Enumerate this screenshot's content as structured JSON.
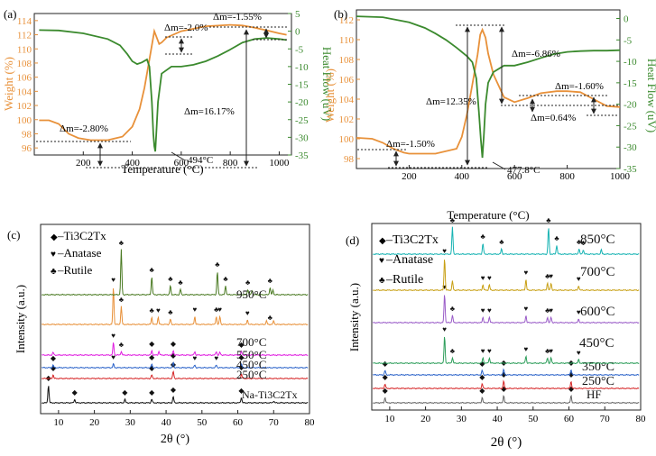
{
  "colors": {
    "weight": "#e8913a",
    "heat": "#3b8a2e",
    "axis": "#222222"
  },
  "chart_data": [
    {
      "type": "line",
      "panel": "(a)",
      "xlabel": "Temperature (°C)",
      "ylabel": "Weight (%)",
      "y2label": "Heat Flow (uV)",
      "xlim": [
        0,
        1050
      ],
      "ylim": [
        95,
        115
      ],
      "y2lim": [
        -35,
        5
      ],
      "xticks": [
        200,
        400,
        600,
        800,
        1000
      ],
      "yticks": [
        96,
        98,
        100,
        102,
        104,
        106,
        108,
        110,
        112,
        114
      ],
      "y2ticks": [
        5,
        0,
        -5,
        -10,
        -15,
        -20,
        -25,
        -30,
        -35
      ],
      "series": [
        {
          "name": "Weight",
          "axis": "left",
          "color": "#e8913a",
          "x": [
            20,
            60,
            100,
            140,
            180,
            230,
            300,
            360,
            400,
            430,
            450,
            470,
            480,
            490,
            500,
            510,
            520,
            540,
            600,
            700,
            800,
            850,
            900,
            950,
            1000,
            1030
          ],
          "y": [
            99.9,
            99.9,
            99.4,
            98.0,
            97.4,
            97.1,
            97.1,
            97.6,
            99.0,
            101.5,
            104.5,
            108.5,
            110.5,
            112.5,
            111.6,
            110.7,
            110.9,
            111.6,
            112.5,
            113.2,
            113.4,
            113.3,
            113.0,
            112.6,
            112.2,
            112.0
          ]
        },
        {
          "name": "Heat Flow",
          "axis": "right",
          "color": "#3b8a2e",
          "x": [
            20,
            100,
            200,
            300,
            350,
            380,
            400,
            420,
            440,
            460,
            470,
            480,
            486,
            490,
            494,
            498,
            505,
            520,
            560,
            600,
            650,
            700,
            750,
            800,
            850,
            900,
            950,
            1000,
            1030
          ],
          "y": [
            0.3,
            0.2,
            -0.6,
            -2.2,
            -4.0,
            -6.5,
            -8.5,
            -9.3,
            -8.8,
            -8.0,
            -10.0,
            -20.0,
            -29.0,
            -32.5,
            -34.0,
            -29.0,
            -20.0,
            -12.0,
            -10.0,
            -10.0,
            -9.5,
            -8.5,
            -7.0,
            -5.2,
            -3.2,
            -2.2,
            -1.9,
            -2.2,
            -2.5
          ]
        }
      ],
      "annotations": [
        "Δm=-2.0%",
        "Δm=-1.55%",
        "Δm=-2.80%",
        "Δm=16.17%",
        "494°C"
      ]
    },
    {
      "type": "line",
      "panel": "(b)",
      "xlabel": "Temperature (°C)",
      "ylabel": "Weight (%)",
      "y2label": "Heat Flow (uV)",
      "xlim": [
        0,
        1000
      ],
      "ylim": [
        97,
        113
      ],
      "y2lim": [
        -35,
        2
      ],
      "xticks": [
        200,
        400,
        600,
        800,
        1000
      ],
      "yticks": [
        98,
        100,
        102,
        104,
        106,
        108,
        110,
        112
      ],
      "y2ticks": [
        0,
        -5,
        -10,
        -15,
        -20,
        -25,
        -30,
        -35
      ],
      "series": [
        {
          "name": "Weight",
          "axis": "left",
          "color": "#e8913a",
          "x": [
            0,
            60,
            100,
            140,
            180,
            200,
            300,
            380,
            400,
            420,
            440,
            460,
            470,
            478,
            490,
            500,
            520,
            560,
            600,
            650,
            700,
            760,
            800,
            850,
            900,
            950,
            1000
          ],
          "y": [
            100.1,
            100.0,
            99.6,
            99.0,
            98.6,
            98.5,
            98.5,
            99.0,
            100.2,
            102.5,
            105.5,
            108.5,
            110.5,
            111.0,
            110.2,
            108.6,
            106.5,
            104.2,
            103.7,
            104.1,
            104.6,
            104.8,
            104.8,
            104.7,
            104.0,
            103.3,
            103.2
          ]
        },
        {
          "name": "Heat Flow",
          "axis": "right",
          "color": "#3b8a2e",
          "x": [
            0,
            100,
            200,
            260,
            300,
            340,
            380,
            420,
            440,
            455,
            465,
            472,
            478,
            484,
            490,
            500,
            520,
            560,
            600,
            650,
            700,
            750,
            800,
            850,
            900,
            950,
            1000
          ],
          "y": [
            0.5,
            0.3,
            -0.9,
            -2.2,
            -3.5,
            -5.0,
            -6.8,
            -8.8,
            -10.2,
            -14.0,
            -22.0,
            -28.0,
            -32.5,
            -27.0,
            -20.0,
            -15.0,
            -12.5,
            -11.0,
            -11.0,
            -10.2,
            -9.2,
            -8.3,
            -7.8,
            -7.6,
            -7.5,
            -7.5,
            -7.4
          ]
        }
      ],
      "annotations": [
        "Δm=-6.86%",
        "Δm=12.35%",
        "Δm=-1.60%",
        "Δm=0.64%",
        "Δm=-1.50%",
        "477.8°C"
      ]
    },
    {
      "type": "line",
      "panel": "(c)",
      "xlabel": "2θ (°)",
      "ylabel": "Intensity (a.u.)",
      "xlim": [
        5,
        80
      ],
      "xticks": [
        10,
        20,
        30,
        40,
        50,
        60,
        70,
        80
      ],
      "legend": [
        "–Ti3C2Tx",
        "–Anatase",
        "–Rutile"
      ],
      "series": [
        {
          "name": "Na-Ti3C2Tx",
          "color": "#111111",
          "peaks": [
            [
              7.2,
              20
            ],
            [
              14.5,
              4
            ],
            [
              28.5,
              4
            ],
            [
              36,
              4
            ],
            [
              42,
              7
            ],
            [
              61,
              6
            ],
            [
              70,
              2
            ]
          ]
        },
        {
          "name": "250°C",
          "color": "#d62728",
          "peaks": [
            [
              8.5,
              4
            ],
            [
              36,
              4
            ],
            [
              42,
              8
            ],
            [
              61,
              5
            ]
          ]
        },
        {
          "name": "450°C",
          "color": "#2b63c9",
          "peaks": [
            [
              8.5,
              3
            ],
            [
              25.3,
              4
            ],
            [
              36,
              4
            ],
            [
              42,
              6
            ],
            [
              48,
              3
            ],
            [
              54,
              3
            ],
            [
              61,
              4
            ]
          ]
        },
        {
          "name": "550°C",
          "color": "#e01ee0",
          "peaks": [
            [
              8.5,
              3
            ],
            [
              25.3,
              14
            ],
            [
              27.5,
              4
            ],
            [
              36,
              5
            ],
            [
              38,
              4
            ],
            [
              42,
              5
            ],
            [
              48,
              4
            ],
            [
              54,
              4
            ],
            [
              55,
              3
            ],
            [
              61,
              4
            ]
          ]
        },
        {
          "name": "700°C",
          "color": "#e8913a",
          "peaks": [
            [
              25.3,
              42
            ],
            [
              27.5,
              20
            ],
            [
              36,
              8
            ],
            [
              37.8,
              8
            ],
            [
              41.2,
              6
            ],
            [
              48,
              9
            ],
            [
              54,
              9
            ],
            [
              55,
              9
            ],
            [
              62.7,
              5
            ],
            [
              68,
              4
            ],
            [
              70,
              4
            ]
          ]
        },
        {
          "name": "950°C",
          "color": "#4a7a22",
          "peaks": [
            [
              27.5,
              50
            ],
            [
              36,
              20
            ],
            [
              41.2,
              10
            ],
            [
              44,
              6
            ],
            [
              54.3,
              26
            ],
            [
              56.6,
              10
            ],
            [
              62.8,
              6
            ],
            [
              64,
              5
            ],
            [
              69,
              8
            ],
            [
              69.8,
              5
            ]
          ]
        }
      ],
      "labels": [
        "950°C",
        "700°C",
        "550°C",
        "450°C",
        "250°C",
        "Na-Ti3C2Tx"
      ]
    },
    {
      "type": "line",
      "panel": "(d)",
      "xlabel": "2θ (°)",
      "ylabel": "Intensity (a.u.)",
      "xlim": [
        5,
        80
      ],
      "xticks": [
        10,
        20,
        30,
        40,
        50,
        60,
        70,
        80
      ],
      "legend": [
        "–Ti3C2Tx",
        "–Anatase",
        "–Rutile"
      ],
      "series": [
        {
          "name": "HF",
          "color": "#666666",
          "peaks": [
            [
              8.7,
              6
            ],
            [
              35.8,
              6
            ],
            [
              41.8,
              8
            ],
            [
              60.6,
              8
            ]
          ]
        },
        {
          "name": "250°C",
          "color": "#d62728",
          "peaks": [
            [
              8.7,
              5
            ],
            [
              35.8,
              5
            ],
            [
              41.8,
              8
            ],
            [
              60.6,
              8
            ]
          ]
        },
        {
          "name": "350°C",
          "color": "#2b63c9",
          "peaks": [
            [
              8.7,
              5
            ],
            [
              35.8,
              5
            ],
            [
              41.8,
              6
            ],
            [
              60.6,
              6
            ]
          ]
        },
        {
          "name": "450°C",
          "color": "#2e9e5b",
          "peaks": [
            [
              25.3,
              30
            ],
            [
              27.5,
              6
            ],
            [
              36,
              6
            ],
            [
              37.8,
              6
            ],
            [
              48,
              8
            ],
            [
              54,
              6
            ],
            [
              55,
              6
            ],
            [
              62.7,
              4
            ]
          ]
        },
        {
          "name": "600°C",
          "color": "#9a5cc8",
          "peaks": [
            [
              25.3,
              32
            ],
            [
              27.5,
              8
            ],
            [
              36,
              6
            ],
            [
              37.8,
              6
            ],
            [
              48,
              8
            ],
            [
              54,
              6
            ],
            [
              55,
              6
            ],
            [
              62.7,
              4
            ]
          ]
        },
        {
          "name": "700°C",
          "color": "#c8a015",
          "peaks": [
            [
              25.3,
              36
            ],
            [
              27.5,
              10
            ],
            [
              36,
              6
            ],
            [
              37.8,
              6
            ],
            [
              48,
              12
            ],
            [
              54,
              8
            ],
            [
              55,
              8
            ],
            [
              62.7,
              5
            ]
          ]
        },
        {
          "name": "850°C",
          "color": "#17b3b3",
          "peaks": [
            [
              27.5,
              30
            ],
            [
              36,
              12
            ],
            [
              41.2,
              6
            ],
            [
              54.3,
              30
            ],
            [
              56.6,
              10
            ],
            [
              62.8,
              6
            ],
            [
              64,
              5
            ],
            [
              69,
              5
            ]
          ]
        }
      ],
      "labels": [
        "850°C",
        "700°C",
        "600°C",
        "450°C",
        "350°C",
        "250°C",
        "HF"
      ]
    }
  ]
}
